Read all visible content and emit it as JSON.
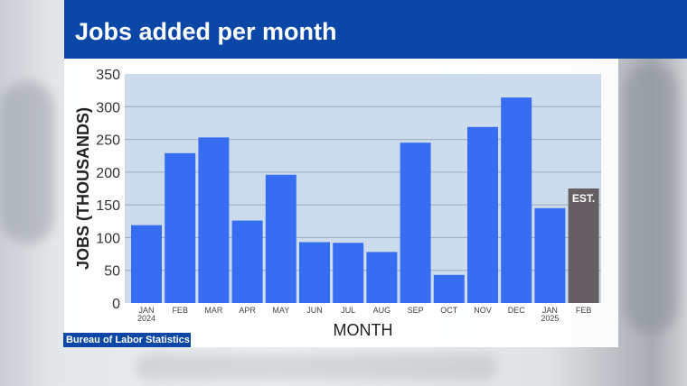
{
  "header": {
    "title": "Jobs added per month"
  },
  "source": "Bureau of Labor Statistics",
  "chart_data": {
    "type": "bar",
    "title": "Jobs added per month",
    "xlabel": "MONTH",
    "ylabel": "JOBS  (THOUSANDS)",
    "ylim": [
      0,
      350
    ],
    "yticks": [
      0,
      50,
      100,
      150,
      200,
      250,
      300,
      350
    ],
    "grid": true,
    "categories": [
      [
        "JAN",
        "2024"
      ],
      [
        "FEB"
      ],
      [
        "MAR"
      ],
      [
        "APR"
      ],
      [
        "MAY"
      ],
      [
        "JUN"
      ],
      [
        "JUL"
      ],
      [
        "AUG"
      ],
      [
        "SEP"
      ],
      [
        "OCT"
      ],
      [
        "NOV"
      ],
      [
        "DEC"
      ],
      [
        "JAN",
        "2025"
      ],
      [
        "FEB"
      ]
    ],
    "values": [
      119,
      229,
      253,
      126,
      196,
      93,
      92,
      78,
      245,
      43,
      269,
      314,
      145,
      175
    ],
    "estimate_index": 13,
    "estimate_label": "EST.",
    "colors": {
      "bar": "#376ef1",
      "estimate": "#655f63",
      "plot_bg": "#ccdcec",
      "grid": "#9aabbd"
    }
  }
}
